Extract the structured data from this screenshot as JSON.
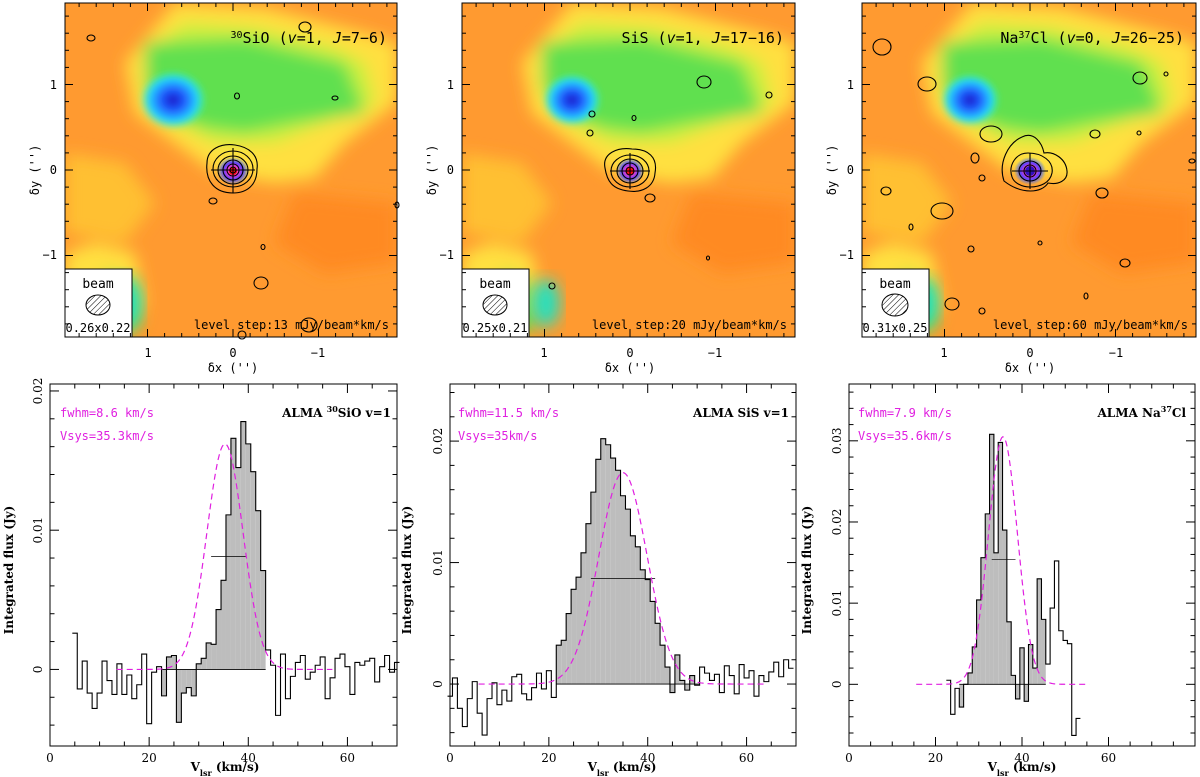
{
  "figure": {
    "maps": [
      {
        "title_main": "SiO (v=1, J=7−6)",
        "title_sup": "30",
        "title_pre": "",
        "title_post": "SiO (",
        "title_v": "v",
        "title_mid": "=1, ",
        "title_j": "J",
        "title_end": "=7−6)",
        "beam_label": "beam",
        "beam_size": "0.26x0.22",
        "level_step": "level step:13 mJy/beam*km/s",
        "xlabel": "δx ('')",
        "ylabel": "δy ('')",
        "x_ticks": [
          "1",
          "0",
          "−1"
        ],
        "y_ticks": [
          "1",
          "0",
          "−1"
        ]
      },
      {
        "title_sup": "",
        "title_pre": "",
        "title_post": "SiS (",
        "title_v": "v",
        "title_mid": "=1, ",
        "title_j": "J",
        "title_end": "=17−16)",
        "beam_label": "beam",
        "beam_size": "0.25x0.21",
        "level_step": "level step:20 mJy/beam*km/s",
        "xlabel": "δx ('')",
        "ylabel": "δy ('')",
        "x_ticks": [
          "1",
          "0",
          "−1"
        ],
        "y_ticks": [
          "1",
          "0",
          "−1"
        ]
      },
      {
        "title_sup": "37",
        "title_pre": "Na",
        "title_post": "Cl (",
        "title_v": "v",
        "title_mid": "=0, ",
        "title_j": "J",
        "title_end": "=26−25)",
        "beam_label": "beam",
        "beam_size": "0.31x0.25",
        "level_step": "level step:60 mJy/beam*km/s",
        "xlabel": "δx ('')",
        "ylabel": "δy ('')",
        "x_ticks": [
          "1",
          "0",
          "−1"
        ],
        "y_ticks": [
          "1",
          "0",
          "−1"
        ]
      }
    ],
    "spectra_labels": [
      {
        "fwhm": "fwhm=8.6 km/s",
        "vsys": "Vsys=35.3km/s",
        "tag_pre": "ALMA ",
        "tag_sup": "30",
        "tag_post": "SiO v=1"
      },
      {
        "fwhm": "fwhm=11.5 km/s",
        "vsys": "Vsys=35km/s",
        "tag_pre": "ALMA SiS v=1",
        "tag_sup": "",
        "tag_post": ""
      },
      {
        "fwhm": "fwhm=7.9 km/s",
        "vsys": "Vsys=35.6km/s",
        "tag_pre": "ALMA Na",
        "tag_sup": "37",
        "tag_post": "Cl"
      }
    ],
    "spec_xlabel_main": "V",
    "spec_xlabel_sub": "lsr",
    "spec_xlabel_tail": " (km/s)",
    "spec_ylabel": "Integrated flux (Jy)",
    "colors": {
      "fit": "#e020e0",
      "fill": "#bdbdbd",
      "line": "#000000"
    }
  },
  "chart_data": [
    {
      "type": "line",
      "title": "ALMA 30SiO v=1",
      "xlabel": "Vlsr (km/s)",
      "ylabel": "Integrated flux (Jy)",
      "xlim": [
        0,
        70
      ],
      "ylim": [
        -0.0055,
        0.0205
      ],
      "x_ticks": [
        0,
        20,
        40,
        60
      ],
      "y_ticks": [
        0,
        0.01,
        0.02
      ],
      "x_start": 5.0,
      "step": 1.0,
      "values": [
        0.0026,
        -0.0014,
        0.0006,
        -0.0017,
        -0.0028,
        -0.0017,
        0.0006,
        -0.0008,
        -0.0018,
        0.0004,
        -0.0018,
        -0.0004,
        -0.0021,
        -0.0011,
        0.0011,
        -0.0039,
        -0.0002,
        0.0002,
        -0.0019,
        0.0009,
        0.001,
        -0.0038,
        -0.0017,
        -0.0013,
        -0.0019,
        0.0004,
        0.0008,
        0.0019,
        0.0018,
        0.0043,
        0.0064,
        0.0111,
        0.0166,
        0.0145,
        0.0178,
        0.0162,
        0.0142,
        0.0114,
        0.0071,
        0.0014,
        0.0003,
        -0.0033,
        0.0011,
        -0.0021,
        -0.0005,
        0.0005,
        0.001,
        -0.0007,
        -0.0002,
        0.0003,
        0.0009,
        -0.0021,
        -0.0006,
        0.0008,
        0.0011,
        0.0002,
        -0.0018,
        0.0005,
        0.0003,
        0.0006,
        0.0008,
        -0.0009,
        0.0002,
        0.001,
        -0.0002,
        0.0005
      ],
      "fill_range": [
        23,
        43
      ],
      "halfmax_line": {
        "from": 32.5,
        "to": 39.5,
        "y": 0.0081
      },
      "fit": {
        "center": 35.3,
        "fwhm": 8.6,
        "amplitude": 0.0162
      }
    },
    {
      "type": "line",
      "title": "ALMA SiS v=1",
      "xlabel": "Vlsr (km/s)",
      "ylabel": "Integrated flux (Jy)",
      "xlim": [
        0,
        70
      ],
      "ylim": [
        -0.0051,
        0.0247
      ],
      "x_ticks": [
        0,
        20,
        40,
        60
      ],
      "y_ticks": [
        0,
        0.01,
        0.02
      ],
      "x_start": 0.0,
      "step": 1.0,
      "values": [
        -0.001,
        0.0005,
        -0.002,
        -0.0035,
        -0.0012,
        0.0002,
        -0.0024,
        -0.0042,
        -0.0012,
        0.0001,
        -0.0017,
        -0.0005,
        -0.0014,
        0.0006,
        0.0008,
        -0.0008,
        -0.0013,
        -0.0003,
        0.0009,
        -0.0004,
        0.0011,
        -0.0011,
        0.0032,
        0.0036,
        0.0058,
        0.0078,
        0.0088,
        0.0108,
        0.0132,
        0.0158,
        0.0185,
        0.0202,
        0.0197,
        0.0186,
        0.0176,
        0.0155,
        0.0144,
        0.0122,
        0.0113,
        0.0094,
        0.0086,
        0.0068,
        0.005,
        0.0032,
        0.0014,
        -0.0007,
        0.0024,
        0.0003,
        -0.0005,
        0.0007,
        -0.0001,
        0.0014,
        0.0009,
        0.0003,
        0.0008,
        -0.0007,
        0.0015,
        0.0007,
        -0.0008,
        0.0016,
        0.0005,
        0.0011,
        -0.001,
        0.0007,
        0.0002,
        0.001,
        0.0018,
        0.0006,
        0.002,
        0.0013
      ],
      "fill_range": [
        22,
        50
      ],
      "halfmax_line": {
        "from": 28.5,
        "to": 41.5,
        "y": 0.0087
      },
      "fit": {
        "center": 35.0,
        "fwhm": 11.5,
        "amplitude": 0.0174
      }
    },
    {
      "type": "line",
      "title": "ALMA Na37Cl",
      "xlabel": "Vlsr (km/s)",
      "ylabel": "Integrated flux (Jy)",
      "xlim": [
        0,
        80
      ],
      "ylim": [
        -0.0076,
        0.037
      ],
      "x_ticks": [
        0,
        20,
        40,
        60
      ],
      "y_ticks": [
        0,
        0.01,
        0.02,
        0.03
      ],
      "x_start": 23.0,
      "step": 1.0,
      "values": [
        0.0005,
        -0.0037,
        -0.0005,
        -0.0028,
        0.0,
        0.0014,
        0.0046,
        0.0104,
        0.0156,
        0.021,
        0.0308,
        0.0162,
        0.0298,
        0.019,
        0.0077,
        0.0011,
        -0.0018,
        0.0045,
        -0.0021,
        0.0049,
        0.002,
        0.013,
        0.008,
        0.0025,
        0.0094,
        0.0152,
        0.0066,
        0.0054,
        0.005,
        -0.0063,
        -0.0042
      ],
      "fill_range": [
        26,
        45
      ],
      "halfmax_line": {
        "from": 33.0,
        "to": 38.5,
        "y": 0.0154
      },
      "fit": {
        "center": 35.6,
        "fwhm": 7.9,
        "amplitude": 0.0305
      }
    }
  ]
}
